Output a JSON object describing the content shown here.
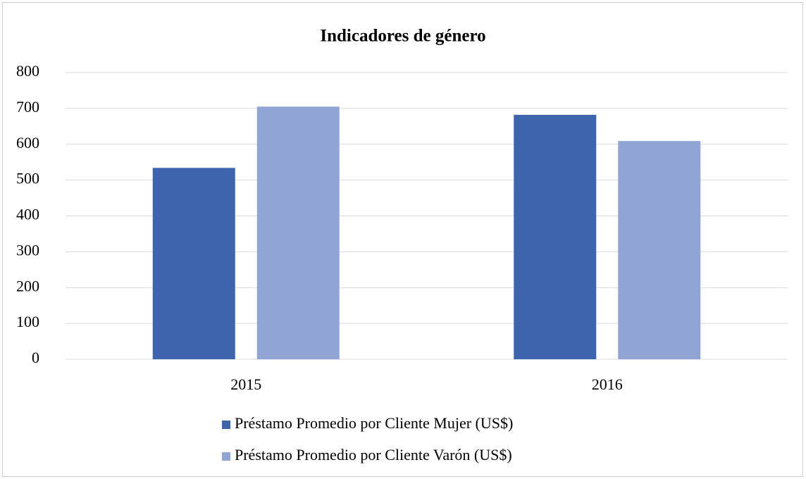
{
  "chart_data": {
    "type": "bar",
    "title": "Indicadores de género",
    "categories": [
      "2015",
      "2016"
    ],
    "series": [
      {
        "name": "Préstamo Promedio por Cliente Mujer (US$)",
        "color": "#3d64ad",
        "values": [
          534,
          682
        ]
      },
      {
        "name": "Préstamo Promedio por Cliente Varón (US$)",
        "color": "#91a5d4",
        "values": [
          705,
          609
        ]
      }
    ],
    "ylim": [
      0,
      800
    ],
    "yticks": [
      0,
      100,
      200,
      300,
      400,
      500,
      600,
      700,
      800
    ],
    "grid": true,
    "legend": "bottom"
  }
}
